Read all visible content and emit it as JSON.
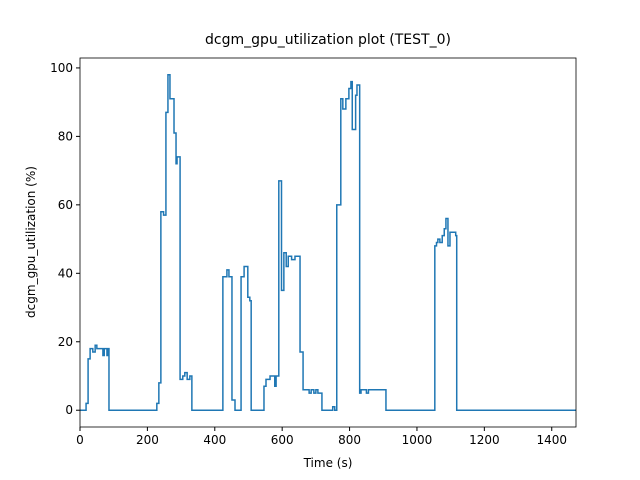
{
  "chart_data": {
    "type": "line",
    "title": "dcgm_gpu_utilization plot (TEST_0)",
    "x_label": "Time (s)",
    "y_label": "dcgm_gpu_utilization (%)",
    "drawstyle": "steps-post",
    "color": "#1f77b4",
    "xlim": [
      0,
      1472
    ],
    "ylim": [
      -4.9,
      102.9
    ],
    "xticks": [
      0,
      200,
      400,
      600,
      800,
      1000,
      1200,
      1400
    ],
    "yticks": [
      0,
      20,
      40,
      60,
      80,
      100
    ],
    "x": [
      0,
      18,
      24,
      30,
      38,
      45,
      50,
      68,
      72,
      80,
      83,
      86,
      228,
      234,
      240,
      248,
      255,
      261,
      267,
      279,
      285,
      288,
      297,
      305,
      311,
      318,
      326,
      332,
      424,
      436,
      442,
      451,
      460,
      478,
      487,
      498,
      504,
      508,
      546,
      552,
      564,
      578,
      582,
      590,
      598,
      605,
      612,
      618,
      628,
      638,
      653,
      662,
      680,
      686,
      694,
      700,
      706,
      718,
      750,
      756,
      762,
      774,
      780,
      789,
      798,
      804,
      808,
      818,
      822,
      830,
      834,
      850,
      856,
      908,
      1053,
      1058,
      1062,
      1068,
      1075,
      1081,
      1086,
      1092,
      1098,
      1115,
      1118,
      1472
    ],
    "values": [
      0,
      2,
      15,
      18,
      17,
      19,
      18,
      16,
      18,
      16,
      18,
      0,
      2,
      8,
      58,
      57,
      87,
      98,
      91,
      81,
      72,
      74,
      9,
      10,
      11,
      9,
      10,
      0,
      39,
      41,
      39,
      3,
      0,
      39,
      42,
      33,
      32,
      0,
      7,
      9,
      10,
      7,
      10,
      67,
      35,
      46,
      42,
      45,
      44,
      45,
      17,
      6,
      5,
      6,
      5,
      6,
      5,
      0,
      1,
      0,
      60,
      91,
      88,
      91,
      94,
      96,
      82,
      92,
      95,
      5,
      6,
      5,
      6,
      0,
      48,
      49,
      50,
      49,
      51,
      53,
      56,
      48,
      52,
      51,
      0,
      0
    ]
  }
}
